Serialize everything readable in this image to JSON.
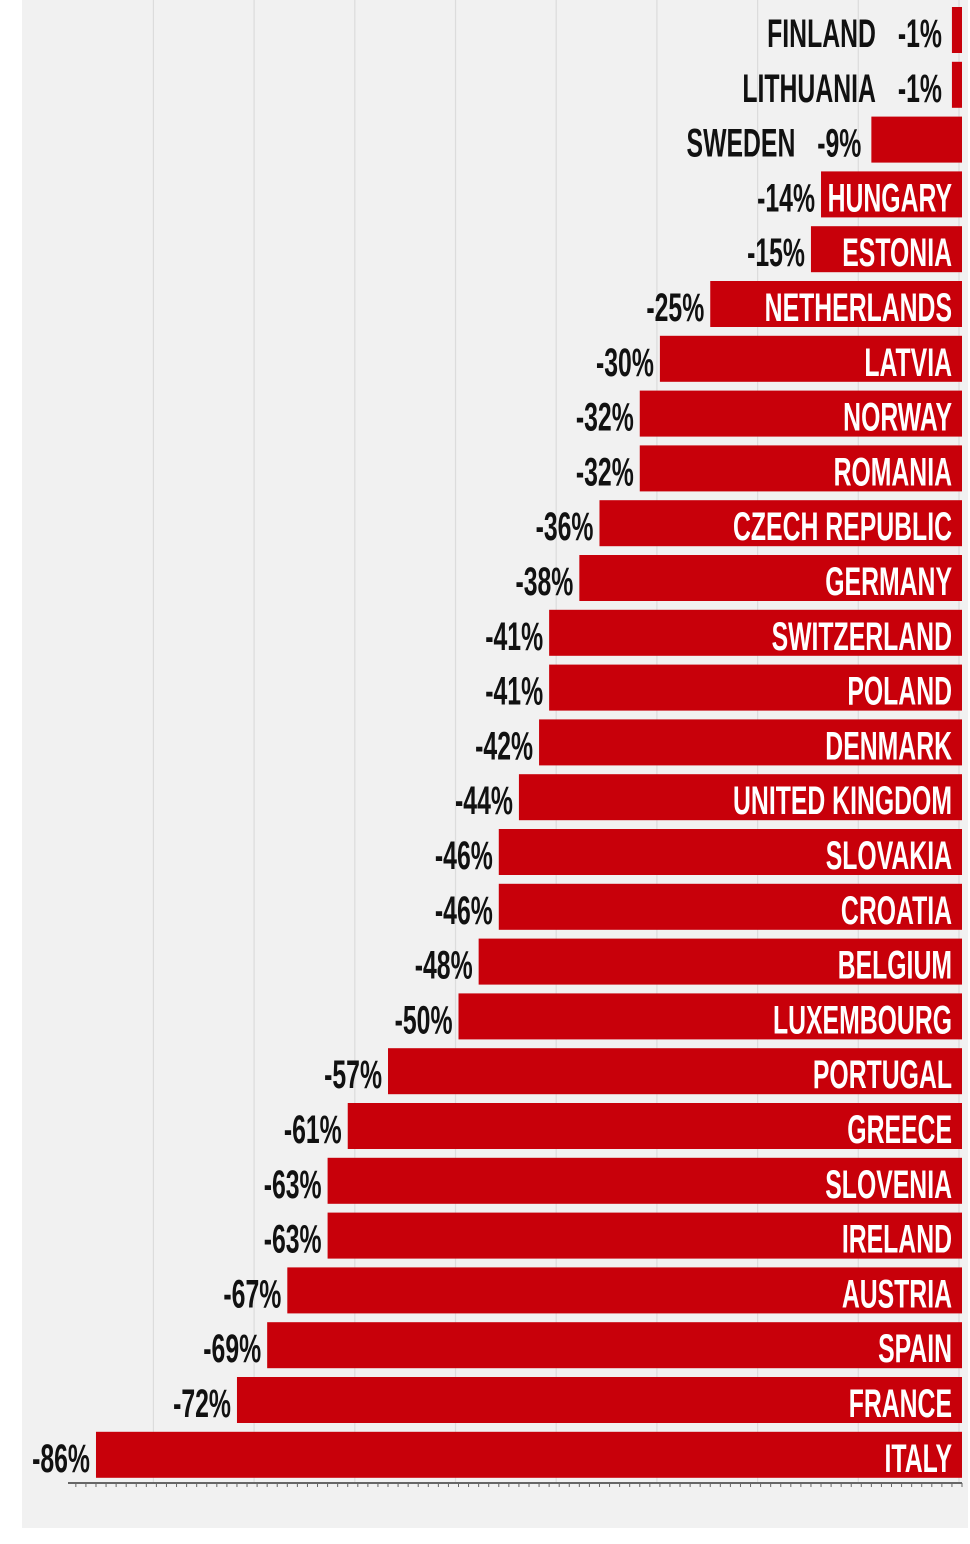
{
  "chart_data": {
    "type": "bar",
    "orientation": "horizontal",
    "value_suffix": "%",
    "grid": true,
    "xlim": [
      -90,
      0
    ],
    "colors": {
      "bar": "#c8000a",
      "background": "#f1f1f1",
      "grid": "#dcdcdc",
      "axis": "#666666",
      "text": "#111111",
      "bar_text": "#ffffff"
    },
    "categories": [
      "FINLAND",
      "LITHUANIA",
      "SWEDEN",
      "HUNGARY",
      "ESTONIA",
      "NETHERLANDS",
      "LATVIA",
      "NORWAY",
      "ROMANIA",
      "CZECH REPUBLIC",
      "GERMANY",
      "SWITZERLAND",
      "POLAND",
      "DENMARK",
      "UNITED KINGDOM",
      "SLOVAKIA",
      "CROATIA",
      "BELGIUM",
      "LUXEMBOURG",
      "PORTUGAL",
      "GREECE",
      "SLOVENIA",
      "IRELAND",
      "AUSTRIA",
      "SPAIN",
      "FRANCE",
      "ITALY"
    ],
    "values": [
      -1,
      -1,
      -9,
      -14,
      -15,
      -25,
      -30,
      -32,
      -32,
      -36,
      -38,
      -41,
      -41,
      -42,
      -44,
      -46,
      -46,
      -48,
      -50,
      -57,
      -61,
      -63,
      -63,
      -67,
      -69,
      -72,
      -86
    ],
    "labels_outside": [
      "FINLAND",
      "LITHUANIA",
      "SWEDEN"
    ]
  }
}
